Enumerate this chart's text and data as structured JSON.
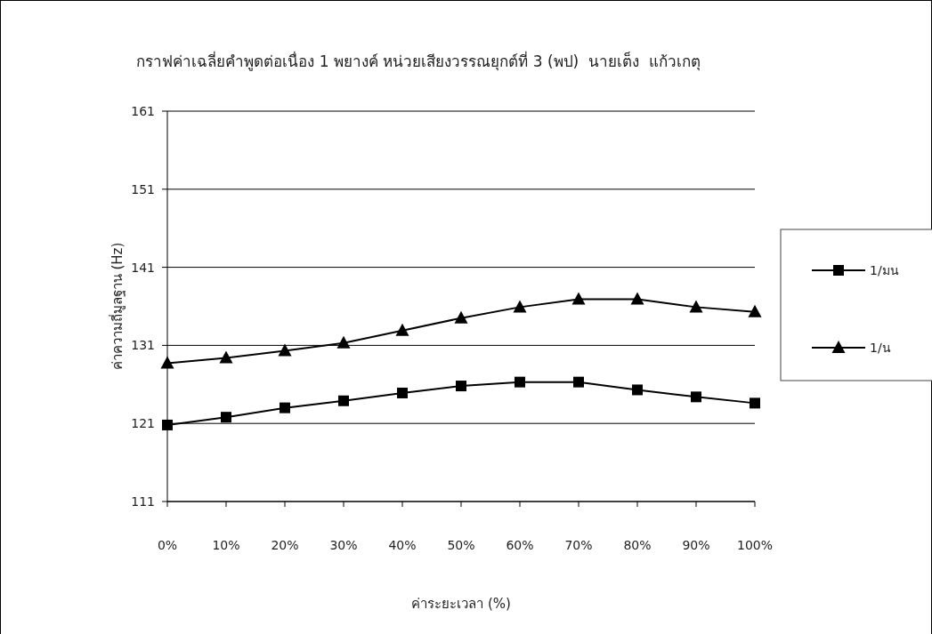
{
  "chart_data": {
    "type": "line",
    "title": "กราฟค่าเฉลี่ยคำพูดต่อเนื่อง 1 พยางค์ หน่วยเสียงวรรณยุกต์ที่ 3 (พป)  นายเต็ง  แก้วเกตุ",
    "xlabel": "ค่าระยะเวลา (%)",
    "ylabel": "ค่าความถี่มูลฐาน (Hz)",
    "categories": [
      "0%",
      "10%",
      "20%",
      "30%",
      "40%",
      "50%",
      "60%",
      "70%",
      "80%",
      "90%",
      "100%"
    ],
    "series": [
      {
        "name": "1/มน",
        "color": "#000000",
        "marker": "square",
        "values": [
          120.8,
          121.8,
          123.0,
          123.9,
          124.9,
          125.8,
          126.3,
          126.3,
          125.3,
          124.4,
          123.6
        ]
      },
      {
        "name": "1/น",
        "color": "#000000",
        "marker": "triangle",
        "values": [
          128.7,
          129.4,
          130.3,
          131.3,
          132.9,
          134.5,
          135.9,
          136.9,
          136.9,
          135.9,
          135.3
        ]
      }
    ],
    "ylim": [
      111,
      161
    ],
    "yticks": [
      111,
      121,
      131,
      141,
      151,
      161
    ],
    "grid": "y",
    "legend": "right"
  }
}
